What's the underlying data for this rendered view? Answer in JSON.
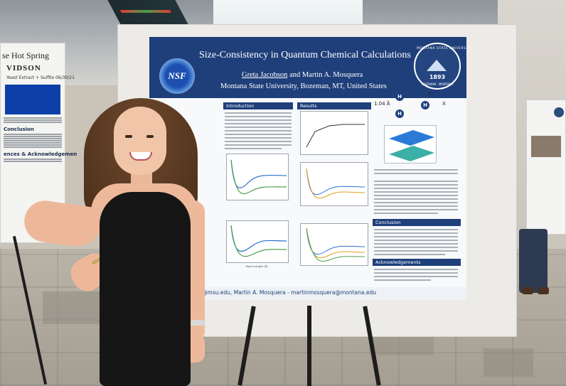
{
  "scene": {
    "poster": {
      "title": "Size-Consistency in Quantum Chemical Calculations",
      "author_1": "Greta Jacobson",
      "author_join": "and Martin A. Mosquera",
      "affiliation": "Montana State University, Bozeman, MT, United States",
      "nsf_logo_text": "NSF",
      "msu_seal": {
        "ring_text": "MONTANA STATE UNIVERSITY",
        "year": "1893",
        "bottom_text": "BOZEMAN · MONTANA"
      },
      "sections": {
        "introduction": "Introduction",
        "results": "Results",
        "conclusion": "Conclusion",
        "acknowledgements": "Acknowledgements"
      },
      "molecule_labels": {
        "bond_length": "1.04 Å",
        "atom_h1": "H",
        "atom_h2": "H",
        "atom_h3": "H",
        "axis_y": "Y",
        "axis_x": "X"
      },
      "plot_axis_label": "Bond Length (Å)",
      "footer_email": "bson@msu.edu, Martin A. Mosquera - martinmosquera@montana.edu"
    },
    "left_poster": {
      "title_fragment": "se Hot Spring",
      "author_fragment": "VIDSON",
      "chart_label": "Yeast Extract + Sulfite 06/30/21",
      "section_conclusion": "Conclusion",
      "section_ack": "ences & Acknowledgemen"
    }
  }
}
